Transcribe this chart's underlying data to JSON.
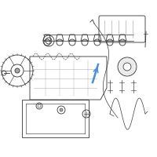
{
  "background_color": "#ffffff",
  "line_color": "#333333",
  "highlight_color": "#4a90d9",
  "light_gray": "#aaaaaa",
  "mid_gray": "#888888",
  "dark_gray": "#555555",
  "fig_width": 2.0,
  "fig_height": 2.0,
  "dpi": 100
}
